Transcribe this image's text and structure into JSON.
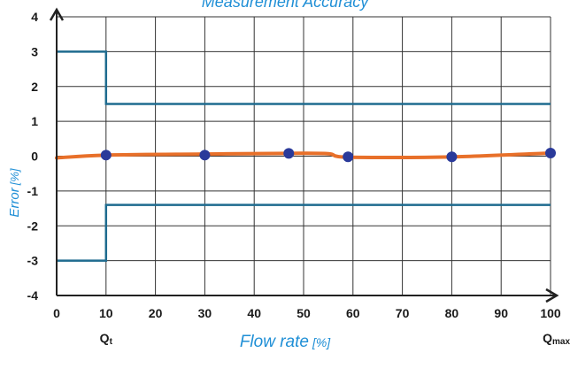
{
  "chart_data": {
    "type": "line",
    "title": "Measurement Accuracy",
    "xlabel": "Flow rate",
    "xlabel_unit": "[%]",
    "ylabel": "Error",
    "ylabel_unit": "[%]",
    "xlim": [
      0,
      100
    ],
    "ylim": [
      -4,
      4
    ],
    "x_ticks": [
      "0",
      "10",
      "20",
      "30",
      "40",
      "50",
      "60",
      "70",
      "80",
      "90",
      "100"
    ],
    "y_ticks": [
      "4",
      "3",
      "2",
      "1",
      "0",
      "-1",
      "-2",
      "-3",
      "-4"
    ],
    "grid": true,
    "annotations": [
      {
        "main": "Q",
        "sub": "t",
        "x": 10
      },
      {
        "main": "Q",
        "sub": "max",
        "x": 100
      }
    ],
    "series": [
      {
        "role": "upper-limit",
        "color": "#1e6b8f",
        "x": [
          0,
          10,
          10,
          100
        ],
        "y": [
          3,
          3,
          1.5,
          1.5
        ]
      },
      {
        "role": "lower-limit",
        "color": "#1e6b8f",
        "x": [
          0,
          10,
          10,
          100
        ],
        "y": [
          -3,
          -3,
          -1.4,
          -1.4
        ]
      },
      {
        "role": "error-curve",
        "color": "#e8702a",
        "x": [
          0,
          10,
          30,
          47,
          55,
          59,
          80,
          100
        ],
        "y": [
          -0.05,
          0.03,
          0.06,
          0.08,
          0.07,
          -0.03,
          -0.02,
          0.09
        ]
      },
      {
        "role": "measured-points",
        "color": "#2a3a9a",
        "x": [
          10,
          30,
          47,
          59,
          80,
          100
        ],
        "y": [
          0.03,
          0.03,
          0.08,
          -0.02,
          -0.02,
          0.09
        ]
      }
    ]
  }
}
